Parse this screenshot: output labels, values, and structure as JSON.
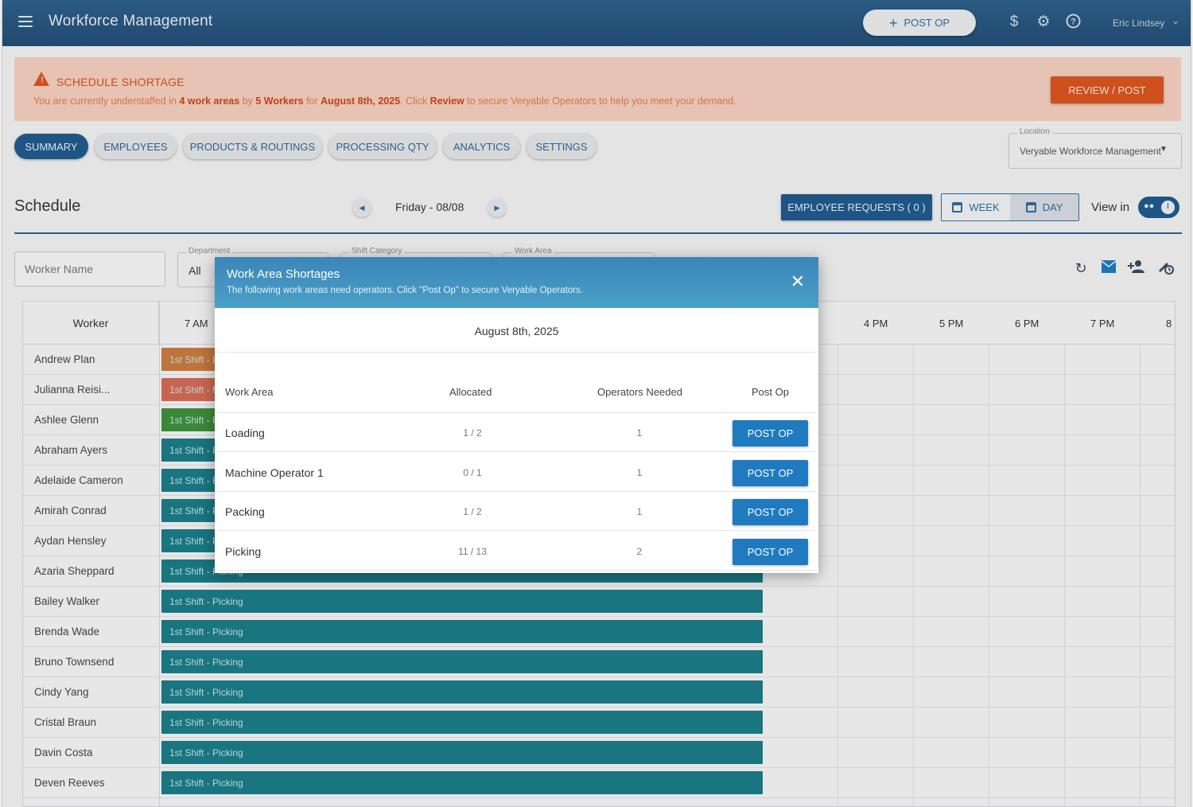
{
  "header": {
    "title": "Workforce Management",
    "post_op_label": "POST OP",
    "user_name": "Eric Lindsey"
  },
  "banner": {
    "title": "SCHEDULE SHORTAGE",
    "msg_1": "You are currently understaffed in ",
    "msg_areas": "4 work areas",
    "msg_2": " by ",
    "msg_workers": "5 Workers",
    "msg_3": " for ",
    "msg_date": "August 8th, 2025",
    "msg_4": ". Click ",
    "msg_review": "Review",
    "msg_5": " to secure Veryable Operators to help you meet your demand.",
    "button": "REVIEW / POST"
  },
  "tabs": [
    "SUMMARY",
    "EMPLOYEES",
    "PRODUCTS & ROUTINGS",
    "PROCESSING QTY",
    "ANALYTICS",
    "SETTINGS"
  ],
  "location": {
    "label": "Location",
    "value": "Veryable Workforce Management"
  },
  "schedule": {
    "title": "Schedule",
    "date": "Friday - 08/08",
    "employee_requests": "EMPLOYEE REQUESTS ( 0 )",
    "week": "WEEK",
    "day": "DAY",
    "view_in": "View in"
  },
  "filters": {
    "worker_placeholder": "Worker Name",
    "department_label": "Department",
    "department_value": "All",
    "shift_label": "Shift Category",
    "area_label": "Work Area"
  },
  "grid": {
    "worker_header": "Worker",
    "hours": [
      "7 AM",
      "4 PM",
      "5 PM",
      "6 PM",
      "7 PM",
      "8"
    ],
    "rows": [
      {
        "name": "Andrew Plan",
        "shift": "1st Shift - L",
        "color": "#c87a3e"
      },
      {
        "name": "Julianna Reisi...",
        "shift": "1st Shift - M",
        "color": "#d26a55"
      },
      {
        "name": "Ashlee Glenn",
        "shift": "1st Shift - P",
        "color": "#3e8f3c"
      },
      {
        "name": "Abraham Ayers",
        "shift": "1st Shift - P",
        "color": "#1a7b86"
      },
      {
        "name": "Adelaide Cameron",
        "shift": "1st Shift - P",
        "color": "#1a7b86"
      },
      {
        "name": "Amirah Conrad",
        "shift": "1st Shift - P",
        "color": "#1a7b86"
      },
      {
        "name": "Aydan Hensley",
        "shift": "1st Shift - P",
        "color": "#1a7b86"
      },
      {
        "name": "Azaria Sheppard",
        "shift": "1st Shift - Picking",
        "color": "#1a7b86"
      },
      {
        "name": "Bailey Walker",
        "shift": "1st Shift - Picking",
        "color": "#1a7b86"
      },
      {
        "name": "Brenda Wade",
        "shift": "1st Shift - Picking",
        "color": "#1a7b86"
      },
      {
        "name": "Bruno Townsend",
        "shift": "1st Shift - Picking",
        "color": "#1a7b86"
      },
      {
        "name": "Cindy Yang",
        "shift": "1st Shift - Picking",
        "color": "#1a7b86"
      },
      {
        "name": "Cristal Braun",
        "shift": "1st Shift - Picking",
        "color": "#1a7b86"
      },
      {
        "name": "Davin Costa",
        "shift": "1st Shift - Picking",
        "color": "#1a7b86"
      },
      {
        "name": "Deven Reeves",
        "shift": "1st Shift - Picking",
        "color": "#1a7b86"
      }
    ]
  },
  "modal": {
    "title": "Work Area Shortages",
    "subtitle": "The following work areas need operators. Click \"Post Op\" to secure Veryable Operators.",
    "date": "August 8th, 2025",
    "columns": [
      "Work Area",
      "Allocated",
      "Operators Needed",
      "Post Op"
    ],
    "button_label": "POST OP",
    "rows": [
      {
        "area": "Loading",
        "allocated": "1 / 2",
        "needed": "1"
      },
      {
        "area": "Machine Operator 1",
        "allocated": "0 / 1",
        "needed": "1"
      },
      {
        "area": "Packing",
        "allocated": "1 / 2",
        "needed": "1"
      },
      {
        "area": "Picking",
        "allocated": "11 / 13",
        "needed": "2"
      }
    ]
  },
  "icons": {
    "menu": "hamburger-menu-icon",
    "dollar": "dollar-icon",
    "settings": "gear-icon",
    "help": "help-icon",
    "warning": "warning-icon",
    "refresh": "refresh-icon",
    "email": "email-icon",
    "add_person": "add-person-icon",
    "time_off": "time-off-icon",
    "close": "close-icon"
  },
  "colors": {
    "primary": "#20598c",
    "accent_orange": "#d8541f",
    "banner_bg": "#f2cdbb",
    "shift_teal": "#1a7b86",
    "post_op_blue": "#1f7ac0"
  }
}
